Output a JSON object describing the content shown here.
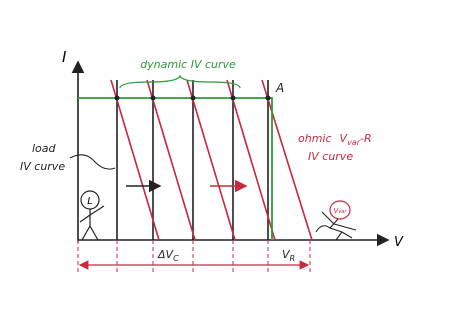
{
  "axes": {
    "y_label": "I",
    "x_label": "V"
  },
  "labels": {
    "dynamic": "dynamic IV curve",
    "point_a": "A",
    "ohmic_line1": "ohmic",
    "ohmic_var": "V",
    "ohmic_var_sub": "var",
    "ohmic_r": "-R",
    "ohmic_line2": "IV curve",
    "load_line1": "load",
    "load_line2": "IV curve"
  },
  "dimensions": {
    "delta": "ΔV",
    "delta_sub": "C",
    "vr": "V",
    "vr_sub": "R"
  },
  "figures": {
    "load": "L",
    "source": "V",
    "source_sub": "var"
  }
}
